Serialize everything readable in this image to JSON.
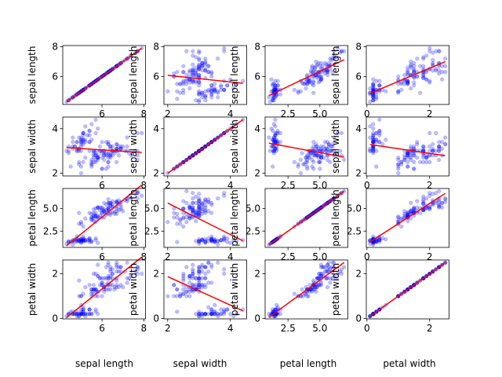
{
  "chart_data": {
    "type": "scatter",
    "title": "",
    "layout": "4x4 scatter matrix with red least-squares fit lines",
    "variables": [
      "sepal length",
      "sepal width",
      "petal length",
      "petal width"
    ],
    "ranges": [
      [
        4.3,
        7.9
      ],
      [
        2.0,
        4.4
      ],
      [
        1.0,
        6.9
      ],
      [
        0.1,
        2.5
      ]
    ],
    "ticks": {
      "0": {
        "x": [
          {
            "v": 6,
            "l": "6"
          },
          {
            "v": 8,
            "l": "8"
          }
        ],
        "y": [
          {
            "v": 6,
            "l": "6"
          },
          {
            "v": 8,
            "l": "8"
          }
        ]
      },
      "1": {
        "x": [
          {
            "v": 2,
            "l": "2"
          },
          {
            "v": 4,
            "l": "4"
          }
        ],
        "y": [
          {
            "v": 2,
            "l": "2"
          },
          {
            "v": 4,
            "l": "4"
          }
        ]
      },
      "2": {
        "x": [
          {
            "v": 2.5,
            "l": "2.5"
          },
          {
            "v": 5.0,
            "l": "5.0"
          }
        ],
        "y": [
          {
            "v": 2.5,
            "l": "2.5"
          },
          {
            "v": 5.0,
            "l": "5.0"
          },
          {
            "v": 7.5,
            "l": "7.5"
          }
        ]
      },
      "3": {
        "x": [
          {
            "v": 0,
            "l": "0"
          },
          {
            "v": 2,
            "l": "2"
          }
        ],
        "y": [
          {
            "v": 0,
            "l": "0"
          },
          {
            "v": 2,
            "l": "2"
          }
        ]
      }
    },
    "marker_color": "#0000ff",
    "fit_color": "#ff0000",
    "points": [
      [
        5.1,
        3.5,
        1.4,
        0.2
      ],
      [
        4.9,
        3.0,
        1.4,
        0.2
      ],
      [
        4.7,
        3.2,
        1.3,
        0.2
      ],
      [
        4.6,
        3.1,
        1.5,
        0.2
      ],
      [
        5.0,
        3.6,
        1.4,
        0.2
      ],
      [
        5.4,
        3.9,
        1.7,
        0.4
      ],
      [
        4.6,
        3.4,
        1.4,
        0.3
      ],
      [
        5.0,
        3.4,
        1.5,
        0.2
      ],
      [
        4.4,
        2.9,
        1.4,
        0.2
      ],
      [
        4.9,
        3.1,
        1.5,
        0.1
      ],
      [
        5.4,
        3.7,
        1.5,
        0.2
      ],
      [
        4.8,
        3.4,
        1.6,
        0.2
      ],
      [
        4.8,
        3.0,
        1.4,
        0.1
      ],
      [
        4.3,
        3.0,
        1.1,
        0.1
      ],
      [
        5.8,
        4.0,
        1.2,
        0.2
      ],
      [
        5.7,
        4.4,
        1.5,
        0.4
      ],
      [
        5.4,
        3.9,
        1.3,
        0.4
      ],
      [
        5.1,
        3.5,
        1.4,
        0.3
      ],
      [
        5.7,
        3.8,
        1.7,
        0.3
      ],
      [
        5.1,
        3.8,
        1.5,
        0.3
      ],
      [
        5.4,
        3.4,
        1.7,
        0.2
      ],
      [
        5.1,
        3.7,
        1.5,
        0.4
      ],
      [
        4.6,
        3.6,
        1.0,
        0.2
      ],
      [
        5.1,
        3.3,
        1.7,
        0.5
      ],
      [
        4.8,
        3.4,
        1.9,
        0.2
      ],
      [
        5.0,
        3.0,
        1.6,
        0.2
      ],
      [
        5.0,
        3.4,
        1.6,
        0.4
      ],
      [
        5.2,
        3.5,
        1.5,
        0.2
      ],
      [
        5.2,
        3.4,
        1.4,
        0.2
      ],
      [
        4.7,
        3.2,
        1.6,
        0.2
      ],
      [
        4.8,
        3.1,
        1.6,
        0.2
      ],
      [
        5.4,
        3.4,
        1.5,
        0.4
      ],
      [
        5.2,
        4.1,
        1.5,
        0.1
      ],
      [
        5.5,
        4.2,
        1.4,
        0.2
      ],
      [
        4.9,
        3.1,
        1.5,
        0.2
      ],
      [
        5.0,
        3.2,
        1.2,
        0.2
      ],
      [
        5.5,
        3.5,
        1.3,
        0.2
      ],
      [
        4.9,
        3.6,
        1.4,
        0.1
      ],
      [
        4.4,
        3.0,
        1.3,
        0.2
      ],
      [
        5.1,
        3.4,
        1.5,
        0.2
      ],
      [
        5.0,
        3.5,
        1.3,
        0.3
      ],
      [
        4.5,
        2.3,
        1.3,
        0.3
      ],
      [
        4.4,
        3.2,
        1.3,
        0.2
      ],
      [
        5.0,
        3.5,
        1.6,
        0.6
      ],
      [
        5.1,
        3.8,
        1.9,
        0.4
      ],
      [
        4.8,
        3.0,
        1.4,
        0.3
      ],
      [
        5.1,
        3.8,
        1.6,
        0.2
      ],
      [
        4.6,
        3.2,
        1.4,
        0.2
      ],
      [
        5.3,
        3.7,
        1.5,
        0.2
      ],
      [
        5.0,
        3.3,
        1.4,
        0.2
      ],
      [
        7.0,
        3.2,
        4.7,
        1.4
      ],
      [
        6.4,
        3.2,
        4.5,
        1.5
      ],
      [
        6.9,
        3.1,
        4.9,
        1.5
      ],
      [
        5.5,
        2.3,
        4.0,
        1.3
      ],
      [
        6.5,
        2.8,
        4.6,
        1.5
      ],
      [
        5.7,
        2.8,
        4.5,
        1.3
      ],
      [
        6.3,
        3.3,
        4.7,
        1.6
      ],
      [
        4.9,
        2.4,
        3.3,
        1.0
      ],
      [
        6.6,
        2.9,
        4.6,
        1.3
      ],
      [
        5.2,
        2.7,
        3.9,
        1.4
      ],
      [
        5.0,
        2.0,
        3.5,
        1.0
      ],
      [
        5.9,
        3.0,
        4.2,
        1.5
      ],
      [
        6.0,
        2.2,
        4.0,
        1.0
      ],
      [
        6.1,
        2.9,
        4.7,
        1.4
      ],
      [
        5.6,
        2.9,
        3.6,
        1.3
      ],
      [
        6.7,
        3.1,
        4.4,
        1.4
      ],
      [
        5.6,
        3.0,
        4.5,
        1.5
      ],
      [
        5.8,
        2.7,
        4.1,
        1.0
      ],
      [
        6.2,
        2.2,
        4.5,
        1.5
      ],
      [
        5.6,
        2.5,
        3.9,
        1.1
      ],
      [
        5.9,
        3.2,
        4.8,
        1.8
      ],
      [
        6.1,
        2.8,
        4.0,
        1.3
      ],
      [
        6.3,
        2.5,
        4.9,
        1.5
      ],
      [
        6.1,
        2.8,
        4.7,
        1.2
      ],
      [
        6.4,
        2.9,
        4.3,
        1.3
      ],
      [
        6.6,
        3.0,
        4.4,
        1.4
      ],
      [
        6.8,
        2.8,
        4.8,
        1.4
      ],
      [
        6.7,
        3.0,
        5.0,
        1.7
      ],
      [
        6.0,
        2.9,
        4.5,
        1.5
      ],
      [
        5.7,
        2.6,
        3.5,
        1.0
      ],
      [
        5.5,
        2.4,
        3.8,
        1.1
      ],
      [
        5.5,
        2.4,
        3.7,
        1.0
      ],
      [
        5.8,
        2.7,
        3.9,
        1.2
      ],
      [
        6.0,
        2.7,
        5.1,
        1.6
      ],
      [
        5.4,
        3.0,
        4.5,
        1.5
      ],
      [
        6.0,
        3.4,
        4.5,
        1.6
      ],
      [
        6.7,
        3.1,
        4.7,
        1.5
      ],
      [
        6.3,
        2.3,
        4.4,
        1.3
      ],
      [
        5.6,
        3.0,
        4.1,
        1.3
      ],
      [
        5.5,
        2.5,
        4.0,
        1.3
      ],
      [
        5.5,
        2.6,
        4.4,
        1.2
      ],
      [
        6.1,
        3.0,
        4.6,
        1.4
      ],
      [
        5.8,
        2.6,
        4.0,
        1.2
      ],
      [
        5.0,
        2.3,
        3.3,
        1.0
      ],
      [
        5.6,
        2.7,
        4.2,
        1.3
      ],
      [
        5.7,
        3.0,
        4.2,
        1.2
      ],
      [
        5.7,
        2.9,
        4.2,
        1.3
      ],
      [
        6.2,
        2.9,
        4.3,
        1.3
      ],
      [
        5.1,
        2.5,
        3.0,
        1.1
      ],
      [
        5.7,
        2.8,
        4.1,
        1.3
      ],
      [
        6.3,
        3.3,
        6.0,
        2.5
      ],
      [
        5.8,
        2.7,
        5.1,
        1.9
      ],
      [
        7.1,
        3.0,
        5.9,
        2.1
      ],
      [
        6.3,
        2.9,
        5.6,
        1.8
      ],
      [
        6.5,
        3.0,
        5.8,
        2.2
      ],
      [
        7.6,
        3.0,
        6.6,
        2.1
      ],
      [
        4.9,
        2.5,
        4.5,
        1.7
      ],
      [
        7.3,
        2.9,
        6.3,
        1.8
      ],
      [
        6.7,
        2.5,
        5.8,
        1.8
      ],
      [
        7.2,
        3.6,
        6.1,
        2.5
      ],
      [
        6.5,
        3.2,
        5.1,
        2.0
      ],
      [
        6.4,
        2.7,
        5.3,
        1.9
      ],
      [
        6.8,
        3.0,
        5.5,
        2.1
      ],
      [
        5.7,
        2.5,
        5.0,
        2.0
      ],
      [
        5.8,
        2.8,
        5.1,
        2.4
      ],
      [
        6.4,
        3.2,
        5.3,
        2.3
      ],
      [
        6.5,
        3.0,
        5.5,
        1.8
      ],
      [
        7.7,
        3.8,
        6.7,
        2.2
      ],
      [
        7.7,
        2.6,
        6.9,
        2.3
      ],
      [
        6.0,
        2.2,
        5.0,
        1.5
      ],
      [
        6.9,
        3.2,
        5.7,
        2.3
      ],
      [
        5.6,
        2.8,
        4.9,
        2.0
      ],
      [
        7.7,
        2.8,
        6.7,
        2.0
      ],
      [
        6.3,
        2.7,
        4.9,
        1.8
      ],
      [
        6.7,
        3.3,
        5.7,
        2.1
      ],
      [
        7.2,
        3.2,
        6.0,
        1.8
      ],
      [
        6.2,
        2.8,
        4.8,
        1.8
      ],
      [
        6.1,
        3.0,
        4.9,
        1.8
      ],
      [
        6.4,
        2.8,
        5.6,
        2.1
      ],
      [
        7.2,
        3.0,
        5.8,
        1.6
      ],
      [
        7.4,
        2.8,
        6.1,
        1.9
      ],
      [
        7.9,
        3.8,
        6.4,
        2.0
      ],
      [
        6.4,
        2.8,
        5.6,
        2.2
      ],
      [
        6.3,
        2.8,
        5.1,
        1.5
      ],
      [
        6.1,
        2.6,
        5.6,
        1.4
      ],
      [
        7.7,
        3.0,
        6.1,
        2.3
      ],
      [
        6.3,
        3.4,
        5.6,
        2.4
      ],
      [
        6.4,
        3.1,
        5.5,
        1.8
      ],
      [
        6.0,
        3.0,
        4.8,
        1.8
      ],
      [
        6.9,
        3.1,
        5.4,
        2.1
      ],
      [
        6.7,
        3.1,
        5.6,
        2.4
      ],
      [
        6.9,
        3.1,
        5.1,
        2.3
      ],
      [
        5.8,
        2.7,
        5.1,
        1.9
      ],
      [
        6.8,
        3.2,
        5.9,
        2.3
      ],
      [
        6.7,
        3.3,
        5.7,
        2.5
      ],
      [
        6.7,
        3.0,
        5.2,
        2.3
      ],
      [
        6.3,
        2.5,
        5.0,
        1.9
      ],
      [
        6.5,
        3.0,
        5.2,
        2.0
      ],
      [
        6.2,
        3.4,
        5.4,
        2.3
      ],
      [
        5.9,
        3.0,
        5.1,
        1.8
      ]
    ]
  }
}
